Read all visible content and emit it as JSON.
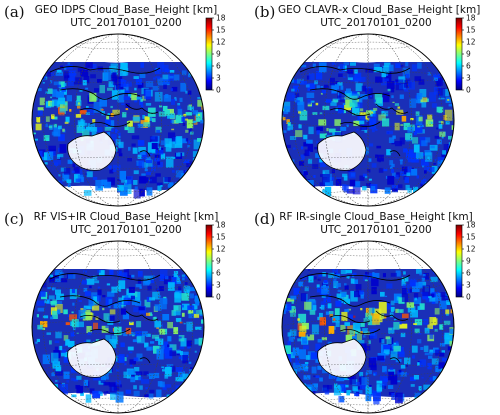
{
  "panels": [
    {
      "label": "(a)",
      "title": "GEO IDPS Cloud_Base_Height [km]",
      "time": "UTC_20170101_0200"
    },
    {
      "label": "(b)",
      "title": "GEO CLAVR-x Cloud_Base_Height [km]",
      "time": "UTC_20170101_0200"
    },
    {
      "label": "(c)",
      "title": "RF VIS+IR Cloud_Base_Height [km]",
      "time": "UTC_20170101_0200"
    },
    {
      "label": "(d)",
      "title": "RF IR-single Cloud_Base_Height [km]",
      "time": "UTC_20170101_0200"
    }
  ],
  "colorbar": {
    "ticks": [
      "18",
      "15",
      "12",
      "9",
      "6",
      "3",
      "0"
    ],
    "colors": [
      "#00007f",
      "#0000ff",
      "#0080ff",
      "#00ffff",
      "#80ff80",
      "#ffff00",
      "#ff8000",
      "#ff0000",
      "#7f0000"
    ]
  }
}
